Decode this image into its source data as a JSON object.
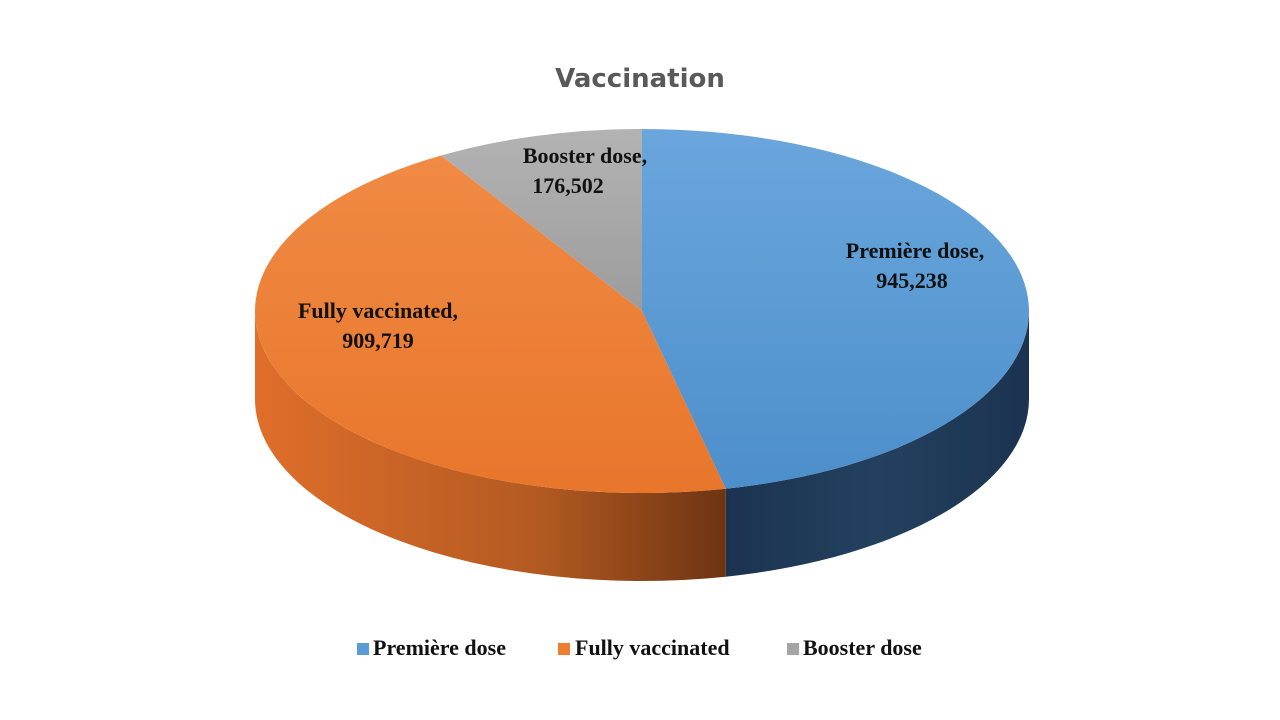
{
  "chart_data": {
    "type": "pie",
    "title": "Vaccination",
    "categories": [
      "Première dose",
      "Fully vaccinated",
      "Booster dose"
    ],
    "values": [
      945238,
      909719,
      176502
    ],
    "value_labels": [
      "945,238",
      "909,719",
      "176,502"
    ],
    "colors": [
      "#5b9bd5",
      "#ed7d31",
      "#a5a5a5"
    ],
    "side_colors": [
      "#1f3a56",
      "#a04a17",
      "#6e6e6e"
    ],
    "legend": {
      "placement": "bottom",
      "items": [
        "Première dose",
        "Fully vaccinated",
        "Booster dose"
      ]
    },
    "style": "3d"
  }
}
